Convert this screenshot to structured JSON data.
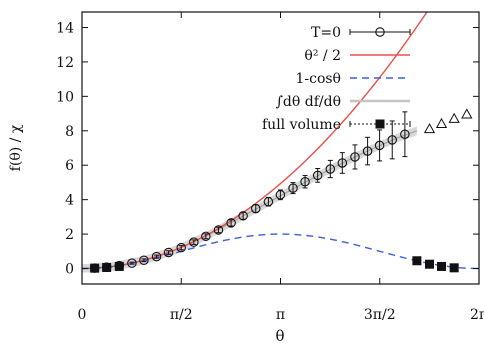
{
  "chart_data": {
    "type": "scatter",
    "title": "",
    "xlabel": "θ",
    "ylabel": "f(θ) / χ",
    "xlim": [
      0,
      6.2832
    ],
    "ylim": [
      -0.9,
      14.9
    ],
    "x_ticks": [
      {
        "value": 0,
        "label": "0"
      },
      {
        "value": 1.5708,
        "label": "π/2"
      },
      {
        "value": 3.1416,
        "label": "π"
      },
      {
        "value": 4.7124,
        "label": "3π/2"
      },
      {
        "value": 6.2832,
        "label": "2π"
      }
    ],
    "y_ticks": [
      {
        "value": 0,
        "label": "0"
      },
      {
        "value": 2,
        "label": "2"
      },
      {
        "value": 4,
        "label": "4"
      },
      {
        "value": 6,
        "label": "6"
      },
      {
        "value": 8,
        "label": "8"
      },
      {
        "value": 10,
        "label": "10"
      },
      {
        "value": 12,
        "label": "12"
      },
      {
        "value": 14,
        "label": "14"
      }
    ],
    "grid": false,
    "legend_position": "top-right",
    "series": [
      {
        "name": "T=0",
        "kind": "points",
        "marker": "open-circle",
        "color": "#111111",
        "x": [
          0.2,
          0.39,
          0.59,
          0.79,
          0.98,
          1.18,
          1.37,
          1.57,
          1.77,
          1.96,
          2.16,
          2.36,
          2.55,
          2.75,
          2.95,
          3.14,
          3.34,
          3.53,
          3.73,
          3.93,
          4.12,
          4.32,
          4.52,
          4.71,
          4.91,
          5.11
        ],
        "y": [
          0.02,
          0.08,
          0.17,
          0.31,
          0.48,
          0.69,
          0.93,
          1.21,
          1.53,
          1.87,
          2.24,
          2.65,
          3.06,
          3.48,
          3.88,
          4.28,
          4.67,
          5.04,
          5.41,
          5.78,
          6.13,
          6.48,
          6.82,
          7.15,
          7.47,
          7.8
        ],
        "yerr": [
          0.02,
          0.03,
          0.04,
          0.06,
          0.08,
          0.09,
          0.1,
          0.12,
          0.13,
          0.14,
          0.16,
          0.18,
          0.2,
          0.22,
          0.25,
          0.28,
          0.32,
          0.36,
          0.4,
          0.5,
          0.6,
          0.7,
          0.8,
          0.9,
          1.1,
          1.3
        ]
      },
      {
        "name": "θ² / 2",
        "kind": "line",
        "function": "theta^2/2",
        "color": "#e8514a",
        "dash": "solid"
      },
      {
        "name": "1-cosθ",
        "kind": "line",
        "function": "1-cos(theta)",
        "color": "#3d5fe0",
        "dash": "dashed"
      },
      {
        "name": "∫dθ df/dθ",
        "kind": "band",
        "color": "#b8b8b8",
        "x": [
          0,
          0.5,
          1.0,
          1.5,
          2.0,
          2.5,
          3.0,
          3.5,
          4.0,
          4.5,
          5.0,
          5.3
        ],
        "y": [
          0,
          0.12,
          0.5,
          1.1,
          1.95,
          2.95,
          3.95,
          4.95,
          5.9,
          6.8,
          7.6,
          8.0
        ]
      },
      {
        "name": "full volume",
        "kind": "points",
        "marker": "filled-square",
        "color": "#111111",
        "x": [
          0.2,
          0.39,
          0.59,
          5.3,
          5.5,
          5.69,
          5.89
        ],
        "y": [
          0.02,
          0.06,
          0.12,
          0.45,
          0.25,
          0.12,
          0.04
        ]
      },
      {
        "name": "",
        "kind": "points",
        "marker": "open-triangle",
        "color": "#111111",
        "x": [
          5.5,
          5.69,
          5.89,
          6.09
        ],
        "y": [
          8.1,
          8.4,
          8.7,
          8.95
        ]
      }
    ]
  }
}
